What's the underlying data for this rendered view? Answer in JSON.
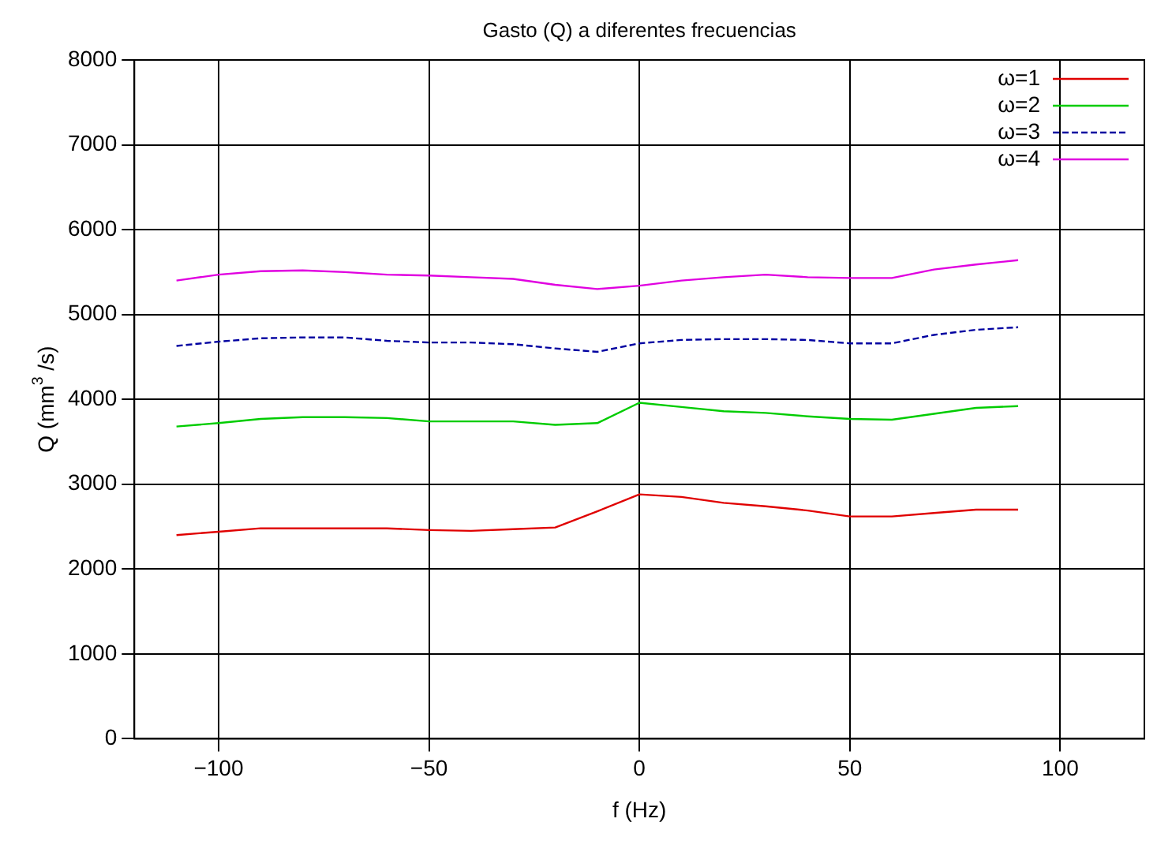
{
  "chart_data": {
    "type": "line",
    "title": "Gasto (Q) a diferentes frecuencias",
    "xlabel": "f (Hz)",
    "ylabel": "Q (mm$^{3}$ /s)",
    "xlim": [
      -120,
      120
    ],
    "xticks": [
      {
        "value": -100,
        "label": "−100"
      },
      {
        "value": -50,
        "label": "−50"
      },
      0,
      50,
      100
    ],
    "ylim": [
      0,
      8000
    ],
    "yticks": [
      0,
      1000,
      2000,
      3000,
      4000,
      5000,
      6000,
      7000,
      8000
    ],
    "grid": true,
    "legend": "top right",
    "marker": "none",
    "x": [
      -110,
      -100,
      -90,
      -80,
      -70,
      -60,
      -50,
      -40,
      -30,
      -20,
      -10,
      0,
      10,
      20,
      30,
      40,
      50,
      60,
      70,
      80,
      90
    ],
    "series": [
      {
        "name": "ω=1",
        "color": "#e00000",
        "line_style": "solid",
        "values": [
          2400,
          2440,
          2480,
          2480,
          2480,
          2480,
          2460,
          2450,
          2470,
          2490,
          2680,
          2880,
          2850,
          2780,
          2740,
          2690,
          2620,
          2620,
          2660,
          2700,
          2700
        ]
      },
      {
        "name": "ω=2",
        "color": "#00cc00",
        "line_style": "solid",
        "values": [
          3680,
          3720,
          3770,
          3790,
          3790,
          3780,
          3740,
          3740,
          3740,
          3700,
          3720,
          3960,
          3910,
          3860,
          3840,
          3800,
          3770,
          3760,
          3830,
          3900,
          3920
        ]
      },
      {
        "name": "ω=3",
        "color": "#0000a0",
        "line_style": "dashed",
        "values": [
          4630,
          4680,
          4720,
          4730,
          4730,
          4690,
          4670,
          4670,
          4650,
          4600,
          4560,
          4660,
          4700,
          4710,
          4710,
          4700,
          4660,
          4660,
          4760,
          4820,
          4850
        ]
      },
      {
        "name": "ω=4",
        "color": "#e000e0",
        "line_style": "solid",
        "values": [
          5400,
          5470,
          5510,
          5520,
          5500,
          5470,
          5460,
          5440,
          5420,
          5350,
          5300,
          5340,
          5400,
          5440,
          5470,
          5440,
          5430,
          5430,
          5530,
          5590,
          5640
        ]
      }
    ]
  }
}
